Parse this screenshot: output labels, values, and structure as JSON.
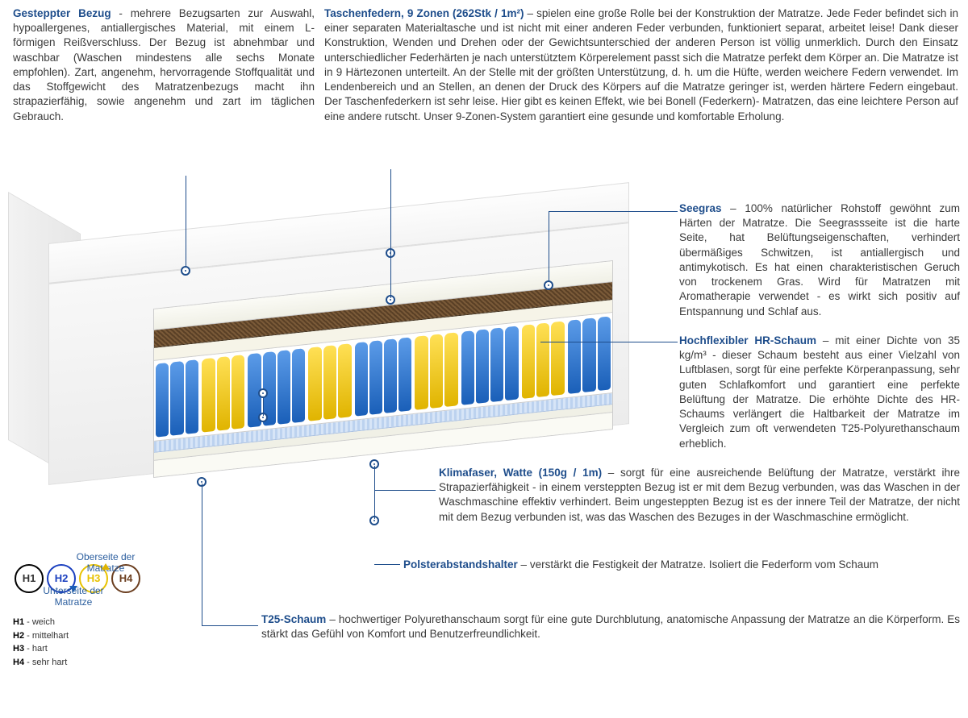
{
  "colors": {
    "title": "#1e4d8b",
    "body": "#3a3a3a",
    "line": "#1e4d8b",
    "spring_yellow": "#e0b400",
    "spring_blue": "#1a5fb8",
    "seagrass": "#5a4026",
    "h1_border": "#000000",
    "h2_border": "#1a3fbf",
    "h3_border": "#e8c200",
    "h4_border": "#6b3e1f"
  },
  "top_left": {
    "title": "Gesteppter Bezug",
    "dash": " - ",
    "text": "mehrere Bezugsarten zur Auswahl, hypoallergenes, antiallergisches Material, mit einem L-förmigen Reißverschluss. Der Bezug ist abnehmbar und waschbar (Waschen mindestens alle sechs Monate empfohlen). Zart, angenehm, hervorragende Stoffqualität und das Stoffgewicht des Matratzenbezugs macht ihn strapazierfähig, sowie angenehm und zart im täglichen Gebrauch."
  },
  "top_right": {
    "title": "Taschenfedern, 9 Zonen (262Stk / 1m²)",
    "dash": " – ",
    "text": "spielen eine große Rolle bei der Konstruktion der Matratze. Jede Feder befindet sich in einer separaten Materialtasche und ist nicht mit einer anderen Feder verbunden, funktioniert separat, arbeitet leise! Dank dieser Konstruktion, Wenden und Drehen oder der Gewichtsunterschied der anderen Person ist völlig unmerklich. Durch den Einsatz unterschiedlicher Federhärten je nach unterstütztem Körperelement passt sich die Matratze perfekt dem Körper an. Die Matratze ist in 9 Härtezonen unterteilt. An der Stelle mit der größten Unterstützung, d. h. um die Hüfte, werden weichere Federn verwendet. Im Lendenbereich und an Stellen, an denen der Druck des Körpers auf die Matratze geringer ist, werden härtere Federn eingebaut. Der Taschenfederkern ist sehr leise. Hier gibt es keinen Effekt, wie bei Bonell (Federkern)- Matratzen, das eine leichtere Person auf eine andere rutscht. Unser 9-Zonen-System garantiert eine gesunde und komfortable Erholung."
  },
  "seegras": {
    "title": "Seegras",
    "dash": " – ",
    "text": "100% natürlicher Rohstoff gewöhnt zum Härten der Matratze. Die Seegrassseite ist die harte Seite, hat Belüftungseigenschaften, verhindert übermäßiges Schwitzen, ist antiallergisch und antimykotisch. Es hat einen charakteristischen Geruch von trockenem Gras. Wird für Matratzen mit Aromatherapie verwendet - es wirkt sich positiv auf Entspannung und Schlaf aus."
  },
  "hr": {
    "title": "Hochflexibler HR-Schaum",
    "dash": " – ",
    "text": "mit einer Dichte von 35 kg/m³ - dieser Schaum besteht aus einer Vielzahl von Luftblasen, sorgt für eine perfekte Körperanpassung, sehr guten Schlafkomfort und garantiert eine perfekte Belüftung der Matratze. Die erhöhte Dichte des HR-Schaums verlängert die Haltbarkeit der Matratze im Vergleich zum oft verwendeten T25-Polyurethanschaum erheblich."
  },
  "klima": {
    "title": "Klimafaser, Watte (150g / 1m)",
    "dash": " – ",
    "text": "sorgt für eine ausreichende Belüftung der Matratze, verstärkt ihre Strapazierfähigkeit - in einem versteppten Bezug ist er mit dem Bezug verbunden, was das Waschen in der Waschmaschine effektiv verhindert. Beim ungesteppten Bezug ist es der innere Teil der Matratze, der nicht mit dem Bezug verbunden ist, was das Waschen des Bezuges in der Waschmaschine ermöglicht."
  },
  "polster": {
    "title": "Polsterabstandshalter",
    "dash": " – ",
    "text": "verstärkt die Festigkeit der Matratze. Isoliert die Federform vom Schaum"
  },
  "t25": {
    "title": "T25-Schaum",
    "dash": " – ",
    "text": "hochwertiger Polyurethanschaum sorgt für eine gute Durchblutung, anatomische Anpassung der Matratze an die Körperform. Es stärkt das Gefühl von Komfort und Benutzerfreundlichkeit."
  },
  "legend": {
    "top_label": "Oberseite der Matratze",
    "bottom_label": "Unterseite der Matratze",
    "h1": "H1",
    "h2": "H2",
    "h3": "H3",
    "h4": "H4",
    "h1_desc": "weich",
    "h2_desc": "mittelhart",
    "h3_desc": "hart",
    "h4_desc": "sehr hart"
  },
  "spring_zones": [
    {
      "color": "blue",
      "count": 3
    },
    {
      "color": "yellow",
      "count": 3
    },
    {
      "color": "blue",
      "count": 4
    },
    {
      "color": "yellow",
      "count": 3
    },
    {
      "color": "blue",
      "count": 4
    },
    {
      "color": "yellow",
      "count": 3
    },
    {
      "color": "blue",
      "count": 4
    },
    {
      "color": "yellow",
      "count": 3
    },
    {
      "color": "blue",
      "count": 3
    }
  ]
}
